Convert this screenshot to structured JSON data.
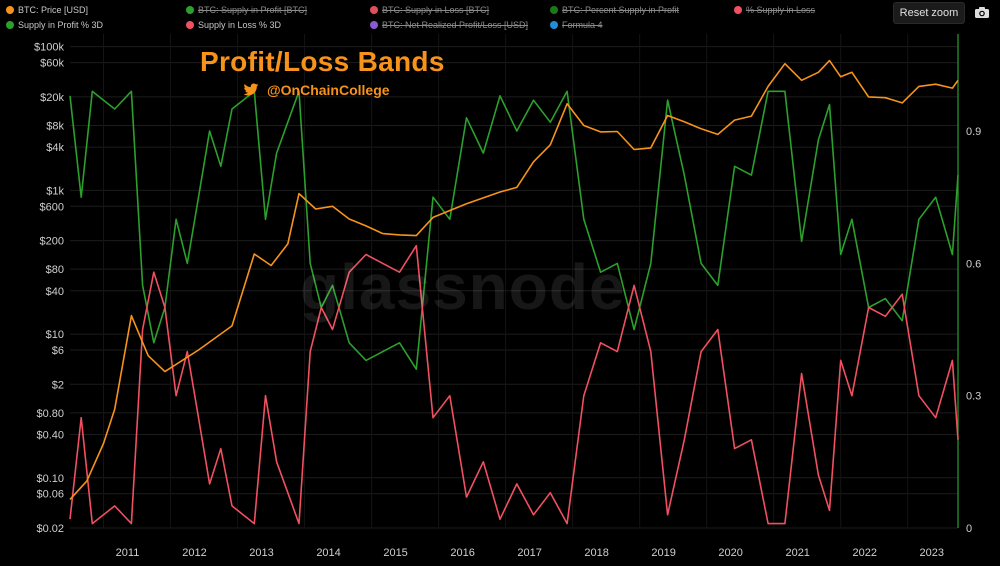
{
  "toolbar": {
    "reset_zoom_label": "Reset zoom",
    "camera_icon": "camera-icon"
  },
  "legend": [
    {
      "label": "BTC: Price [USD]",
      "color": "#f7931a",
      "hidden": false
    },
    {
      "label": "BTC: Supply in Profit [BTC]",
      "color": "#2ca02c",
      "hidden": true
    },
    {
      "label": "BTC: Supply in Loss [BTC]",
      "color": "#e0505a",
      "hidden": true
    },
    {
      "label": "BTC: Percent Supply in Profit",
      "color": "#1a7a1a",
      "hidden": true
    },
    {
      "label": "% Supply in Loss",
      "color": "#f05060",
      "hidden": true
    },
    {
      "label": "Supply in Profit % 3D",
      "color": "#2ca02c",
      "hidden": false
    },
    {
      "label": "Supply in Loss % 3D",
      "color": "#f05060",
      "hidden": false
    },
    {
      "label": "BTC: Net Realized Profit/Loss [USD]",
      "color": "#8a5ad0",
      "hidden": true
    },
    {
      "label": "Formula 4",
      "color": "#1f8fd8",
      "hidden": true
    }
  ],
  "overlay": {
    "title": "Profit/Loss Bands",
    "handle": "@OnChainCollege",
    "handle_icon": "twitter-bird-icon",
    "watermark": "glassnode"
  },
  "chart_data": {
    "type": "line",
    "x_range": [
      "2010-07",
      "2023-10"
    ],
    "x_ticks": [
      "2011",
      "2012",
      "2013",
      "2014",
      "2015",
      "2016",
      "2017",
      "2018",
      "2019",
      "2020",
      "2021",
      "2022",
      "2023"
    ],
    "left_axis": {
      "scale": "log",
      "range": [
        0.02,
        150000
      ],
      "ticks": [
        100000,
        60000,
        20000,
        8000,
        4000,
        1000,
        600,
        200,
        80,
        40,
        10,
        6,
        2,
        0.8,
        0.4,
        0.1,
        0.06,
        0.02
      ],
      "tick_labels": [
        "$100k",
        "$60k",
        "$20k",
        "$8k",
        "$4k",
        "$1k",
        "$600",
        "$200",
        "$80",
        "$40",
        "$10",
        "$6",
        "$2",
        "$0.80",
        "$0.40",
        "$0.10",
        "$0.06",
        "$0.02"
      ]
    },
    "right_axis": {
      "scale": "linear",
      "range": [
        0,
        1.12
      ],
      "ticks": [
        0,
        0.3,
        0.6,
        0.9
      ],
      "tick_labels": [
        "0",
        "0.3",
        "0.6",
        "0.9"
      ]
    },
    "grid": true,
    "series": [
      {
        "name": "BTC: Price [USD]",
        "axis": "left",
        "color": "#f7931a",
        "points": [
          [
            "2010-07",
            0.05
          ],
          [
            "2010-10",
            0.09
          ],
          [
            "2011-01",
            0.3
          ],
          [
            "2011-03",
            0.9
          ],
          [
            "2011-06",
            18
          ],
          [
            "2011-09",
            5
          ],
          [
            "2011-12",
            3
          ],
          [
            "2012-06",
            6
          ],
          [
            "2012-12",
            13
          ],
          [
            "2013-04",
            130
          ],
          [
            "2013-07",
            90
          ],
          [
            "2013-10",
            180
          ],
          [
            "2013-12",
            900
          ],
          [
            "2014-03",
            550
          ],
          [
            "2014-06",
            600
          ],
          [
            "2014-09",
            400
          ],
          [
            "2014-12",
            320
          ],
          [
            "2015-03",
            250
          ],
          [
            "2015-06",
            240
          ],
          [
            "2015-09",
            235
          ],
          [
            "2015-12",
            420
          ],
          [
            "2016-06",
            650
          ],
          [
            "2016-12",
            950
          ],
          [
            "2017-03",
            1100
          ],
          [
            "2017-06",
            2500
          ],
          [
            "2017-09",
            4300
          ],
          [
            "2017-12",
            16000
          ],
          [
            "2018-03",
            8000
          ],
          [
            "2018-06",
            6500
          ],
          [
            "2018-09",
            6600
          ],
          [
            "2018-12",
            3700
          ],
          [
            "2019-03",
            3900
          ],
          [
            "2019-06",
            11000
          ],
          [
            "2019-09",
            9000
          ],
          [
            "2019-12",
            7200
          ],
          [
            "2020-03",
            6000
          ],
          [
            "2020-06",
            9500
          ],
          [
            "2020-09",
            10800
          ],
          [
            "2020-12",
            28000
          ],
          [
            "2021-03",
            58000
          ],
          [
            "2021-06",
            34000
          ],
          [
            "2021-09",
            44000
          ],
          [
            "2021-11",
            64000
          ],
          [
            "2022-01",
            38000
          ],
          [
            "2022-03",
            44000
          ],
          [
            "2022-06",
            20000
          ],
          [
            "2022-09",
            19500
          ],
          [
            "2022-12",
            16500
          ],
          [
            "2023-03",
            28000
          ],
          [
            "2023-06",
            30000
          ],
          [
            "2023-09",
            26500
          ],
          [
            "2023-10",
            34000
          ]
        ]
      },
      {
        "name": "Supply in Profit % 3D",
        "axis": "right",
        "color": "#2ca02c",
        "points": [
          [
            "2010-07",
            0.98
          ],
          [
            "2010-09",
            0.75
          ],
          [
            "2010-11",
            0.99
          ],
          [
            "2011-01",
            0.97
          ],
          [
            "2011-03",
            0.95
          ],
          [
            "2011-06",
            0.99
          ],
          [
            "2011-08",
            0.55
          ],
          [
            "2011-10",
            0.42
          ],
          [
            "2011-12",
            0.5
          ],
          [
            "2012-02",
            0.7
          ],
          [
            "2012-04",
            0.6
          ],
          [
            "2012-06",
            0.75
          ],
          [
            "2012-08",
            0.9
          ],
          [
            "2012-10",
            0.82
          ],
          [
            "2012-12",
            0.95
          ],
          [
            "2013-02",
            0.97
          ],
          [
            "2013-04",
            0.99
          ],
          [
            "2013-06",
            0.7
          ],
          [
            "2013-08",
            0.85
          ],
          [
            "2013-10",
            0.92
          ],
          [
            "2013-12",
            0.99
          ],
          [
            "2014-02",
            0.6
          ],
          [
            "2014-04",
            0.5
          ],
          [
            "2014-06",
            0.55
          ],
          [
            "2014-09",
            0.42
          ],
          [
            "2014-12",
            0.38
          ],
          [
            "2015-03",
            0.4
          ],
          [
            "2015-06",
            0.42
          ],
          [
            "2015-09",
            0.36
          ],
          [
            "2015-12",
            0.75
          ],
          [
            "2016-03",
            0.7
          ],
          [
            "2016-06",
            0.93
          ],
          [
            "2016-09",
            0.85
          ],
          [
            "2016-12",
            0.98
          ],
          [
            "2017-03",
            0.9
          ],
          [
            "2017-06",
            0.97
          ],
          [
            "2017-09",
            0.92
          ],
          [
            "2017-12",
            0.99
          ],
          [
            "2018-03",
            0.7
          ],
          [
            "2018-06",
            0.58
          ],
          [
            "2018-09",
            0.6
          ],
          [
            "2018-12",
            0.45
          ],
          [
            "2019-03",
            0.6
          ],
          [
            "2019-06",
            0.97
          ],
          [
            "2019-09",
            0.8
          ],
          [
            "2019-12",
            0.6
          ],
          [
            "2020-03",
            0.55
          ],
          [
            "2020-06",
            0.82
          ],
          [
            "2020-09",
            0.8
          ],
          [
            "2020-12",
            0.99
          ],
          [
            "2021-03",
            0.99
          ],
          [
            "2021-06",
            0.65
          ],
          [
            "2021-09",
            0.88
          ],
          [
            "2021-11",
            0.96
          ],
          [
            "2022-01",
            0.62
          ],
          [
            "2022-03",
            0.7
          ],
          [
            "2022-06",
            0.5
          ],
          [
            "2022-09",
            0.52
          ],
          [
            "2022-12",
            0.47
          ],
          [
            "2023-03",
            0.7
          ],
          [
            "2023-06",
            0.75
          ],
          [
            "2023-09",
            0.62
          ],
          [
            "2023-10",
            0.8
          ]
        ]
      },
      {
        "name": "Supply in Loss % 3D",
        "axis": "right",
        "color": "#f05060",
        "points": [
          [
            "2010-07",
            0.02
          ],
          [
            "2010-09",
            0.25
          ],
          [
            "2010-11",
            0.01
          ],
          [
            "2011-01",
            0.03
          ],
          [
            "2011-03",
            0.05
          ],
          [
            "2011-06",
            0.01
          ],
          [
            "2011-08",
            0.45
          ],
          [
            "2011-10",
            0.58
          ],
          [
            "2011-12",
            0.5
          ],
          [
            "2012-02",
            0.3
          ],
          [
            "2012-04",
            0.4
          ],
          [
            "2012-06",
            0.25
          ],
          [
            "2012-08",
            0.1
          ],
          [
            "2012-10",
            0.18
          ],
          [
            "2012-12",
            0.05
          ],
          [
            "2013-02",
            0.03
          ],
          [
            "2013-04",
            0.01
          ],
          [
            "2013-06",
            0.3
          ],
          [
            "2013-08",
            0.15
          ],
          [
            "2013-10",
            0.08
          ],
          [
            "2013-12",
            0.01
          ],
          [
            "2014-02",
            0.4
          ],
          [
            "2014-04",
            0.5
          ],
          [
            "2014-06",
            0.45
          ],
          [
            "2014-09",
            0.58
          ],
          [
            "2014-12",
            0.62
          ],
          [
            "2015-03",
            0.6
          ],
          [
            "2015-06",
            0.58
          ],
          [
            "2015-09",
            0.64
          ],
          [
            "2015-12",
            0.25
          ],
          [
            "2016-03",
            0.3
          ],
          [
            "2016-06",
            0.07
          ],
          [
            "2016-09",
            0.15
          ],
          [
            "2016-12",
            0.02
          ],
          [
            "2017-03",
            0.1
          ],
          [
            "2017-06",
            0.03
          ],
          [
            "2017-09",
            0.08
          ],
          [
            "2017-12",
            0.01
          ],
          [
            "2018-03",
            0.3
          ],
          [
            "2018-06",
            0.42
          ],
          [
            "2018-09",
            0.4
          ],
          [
            "2018-12",
            0.55
          ],
          [
            "2019-03",
            0.4
          ],
          [
            "2019-06",
            0.03
          ],
          [
            "2019-09",
            0.2
          ],
          [
            "2019-12",
            0.4
          ],
          [
            "2020-03",
            0.45
          ],
          [
            "2020-06",
            0.18
          ],
          [
            "2020-09",
            0.2
          ],
          [
            "2020-12",
            0.01
          ],
          [
            "2021-03",
            0.01
          ],
          [
            "2021-06",
            0.35
          ],
          [
            "2021-09",
            0.12
          ],
          [
            "2021-11",
            0.04
          ],
          [
            "2022-01",
            0.38
          ],
          [
            "2022-03",
            0.3
          ],
          [
            "2022-06",
            0.5
          ],
          [
            "2022-09",
            0.48
          ],
          [
            "2022-12",
            0.53
          ],
          [
            "2023-03",
            0.3
          ],
          [
            "2023-06",
            0.25
          ],
          [
            "2023-09",
            0.38
          ],
          [
            "2023-10",
            0.2
          ]
        ]
      }
    ]
  }
}
